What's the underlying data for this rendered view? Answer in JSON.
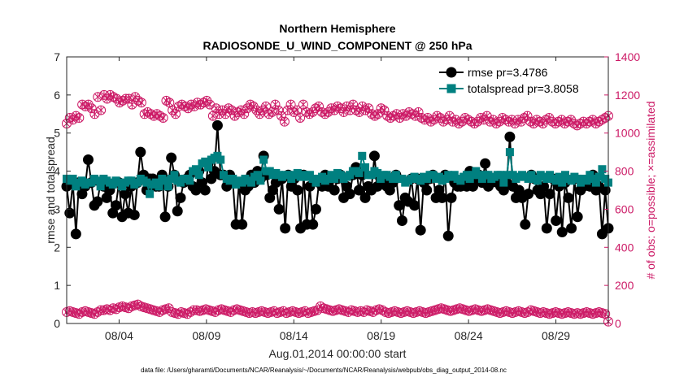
{
  "colors": {
    "rmse": "#000000",
    "spread": "#008080",
    "obs": "#cc1a66",
    "axis": "#262626"
  },
  "chart_data": {
    "type": "line",
    "title": "Northern Hemisphere",
    "subtitle": "RADIOSONDE_U_WIND_COMPONENT @ 250 hPa",
    "xlabel": "Aug.01,2014 00:00:00 start",
    "ylabel": "rmse and totalspread",
    "ylabel_right": "# of obs: o=possible; ×=assimilated",
    "footnote": "data file: /Users/gharamti/Documents/NCAR/Reanalysis/~/Documents/NCAR/Reanalysis/webpub/obs_diag_output_2014-08.nc",
    "x_range_days": [
      1,
      32
    ],
    "ylim": [
      0,
      7
    ],
    "yticks": [
      "0",
      "1",
      "2",
      "3",
      "4",
      "5",
      "6",
      "7"
    ],
    "ylim_right": [
      0,
      1400
    ],
    "yticks_right": [
      "0",
      "200",
      "400",
      "600",
      "800",
      "1000",
      "1200",
      "1400"
    ],
    "xticks": [
      {
        "day": 4,
        "label": "08/04"
      },
      {
        "day": 9,
        "label": "08/09"
      },
      {
        "day": 14,
        "label": "08/14"
      },
      {
        "day": 19,
        "label": "08/19"
      },
      {
        "day": 24,
        "label": "08/24"
      },
      {
        "day": 29,
        "label": "08/29"
      }
    ],
    "legend": [
      "rmse pr=3.4786",
      "totalspread pr=3.8058"
    ],
    "legend_position": "top-right",
    "series": [
      {
        "name": "rmse",
        "axis": "left",
        "values": [
          3.6,
          2.9,
          3.7,
          2.35,
          3.7,
          3.4,
          3.6,
          4.3,
          3.7,
          3.1,
          3.2,
          3.7,
          3.6,
          3.3,
          3.5,
          2.9,
          3.1,
          3.7,
          2.8,
          3.4,
          2.9,
          3.6,
          2.85,
          3.7,
          4.5,
          3.9,
          3.5,
          3.8,
          3.8,
          3.6,
          3.6,
          3.9,
          2.8,
          3.6,
          4.35,
          3.9,
          2.95,
          3.3,
          3.7,
          3.8,
          3.9,
          3.6,
          3.5,
          4.0,
          3.7,
          3.5,
          4.2,
          3.8,
          4.0,
          5.2,
          3.9,
          3.9,
          3.6,
          3.9,
          3.7,
          2.6,
          3.7,
          2.6,
          3.5,
          3.6,
          3.9,
          3.7,
          4.0,
          3.8,
          4.4,
          3.9,
          3.3,
          3.5,
          3.7,
          3.0,
          3.8,
          2.5,
          3.9,
          3.6,
          3.8,
          3.5,
          2.5,
          3.9,
          2.6,
          3.6,
          2.6,
          3.0,
          3.7,
          3.6,
          3.9,
          3.6,
          3.8,
          3.5,
          3.8,
          3.9,
          3.3,
          3.6,
          3.4,
          3.9,
          4.1,
          3.5,
          3.9,
          3.3,
          3.6,
          3.5,
          4.4,
          3.6,
          3.8,
          3.8,
          3.6,
          3.5,
          3.7,
          3.9,
          3.1,
          2.7,
          3.3,
          3.2,
          3.8,
          3.1,
          3.8,
          2.45,
          3.7,
          3.5,
          3.8,
          3.9,
          3.3,
          3.5,
          3.3,
          3.9,
          2.3,
          3.3,
          3.7,
          3.6,
          3.6,
          3.7,
          3.6,
          4.0,
          3.6,
          3.8,
          3.9,
          3.7,
          4.2,
          3.6,
          3.7,
          3.8,
          3.7,
          3.6,
          3.5,
          3.7,
          4.9,
          3.6,
          3.3,
          3.5,
          3.3,
          2.6,
          3.4,
          3.9,
          3.8,
          3.5,
          3.4,
          3.6,
          2.5,
          3.4,
          3.8,
          2.7,
          3.6,
          2.4,
          3.7,
          3.3,
          2.5,
          3.8,
          2.8,
          3.5,
          3.6,
          3.7,
          3.6,
          3.9,
          3.5,
          3.6,
          2.35,
          3.5,
          2.5
        ]
      },
      {
        "name": "totalspread",
        "axis": "left",
        "values": [
          3.8,
          3.75,
          3.8,
          3.6,
          3.7,
          3.75,
          3.65,
          3.7,
          3.7,
          3.8,
          3.75,
          3.6,
          3.8,
          3.75,
          3.7,
          3.65,
          3.75,
          3.7,
          3.6,
          3.7,
          3.75,
          3.75,
          3.65,
          3.7,
          3.8,
          3.75,
          3.7,
          3.4,
          3.65,
          3.7,
          3.6,
          3.8,
          3.75,
          3.6,
          3.8,
          3.9,
          3.75,
          3.7,
          3.8,
          3.8,
          3.75,
          4.0,
          4.05,
          3.9,
          4.2,
          4.25,
          4.1,
          4.3,
          4.35,
          4.4,
          4.3,
          3.9,
          3.8,
          3.75,
          3.8,
          3.65,
          3.75,
          3.7,
          3.8,
          3.75,
          3.7,
          3.85,
          3.9,
          3.75,
          4.3,
          4.0,
          4.0,
          3.9,
          3.95,
          3.9,
          3.85,
          3.9,
          3.9,
          3.8,
          3.9,
          3.95,
          3.85,
          3.9,
          3.85,
          3.9,
          3.8,
          3.7,
          3.8,
          3.85,
          3.75,
          3.8,
          3.9,
          3.8,
          3.95,
          3.9,
          3.8,
          3.85,
          3.9,
          4.0,
          4.0,
          3.95,
          4.4,
          4.1,
          3.9,
          3.9,
          4.0,
          3.95,
          3.8,
          3.9,
          3.9,
          3.85,
          3.8,
          3.9,
          3.8,
          3.8,
          3.7,
          3.75,
          3.8,
          3.85,
          3.8,
          3.75,
          3.85,
          3.8,
          3.9,
          3.9,
          3.8,
          3.85,
          3.75,
          3.8,
          3.9,
          3.85,
          3.9,
          3.8,
          3.75,
          3.85,
          3.9,
          3.8,
          3.9,
          4.0,
          3.9,
          3.8,
          3.9,
          3.9,
          3.8,
          3.85,
          3.9,
          3.9,
          3.7,
          3.9,
          4.5,
          3.9,
          3.8,
          3.85,
          3.9,
          3.85,
          3.8,
          3.9,
          3.8,
          3.75,
          3.9,
          3.85,
          3.8,
          3.9,
          3.8,
          3.75,
          3.85,
          3.7,
          3.9,
          3.8,
          3.75,
          3.85,
          3.8,
          3.7,
          3.8,
          3.75,
          3.9,
          3.8,
          3.7,
          3.85,
          4.05,
          3.8,
          3.7
        ]
      },
      {
        "name": "obs possible",
        "axis": "right",
        "values": [
          1050,
          1080,
          1070,
          1090,
          1080,
          1150,
          1140,
          1150,
          1130,
          1100,
          1190,
          1120,
          1200,
          1180,
          1200,
          1190,
          1180,
          1160,
          1170,
          1180,
          1180,
          1150,
          1190,
          1170,
          1160,
          1100,
          1110,
          1100,
          1090,
          1100,
          1090,
          1080,
          1170,
          1160,
          1120,
          1100,
          1140,
          1150,
          1140,
          1130,
          1150,
          1140,
          1160,
          1150,
          1160,
          1170,
          1150,
          1090,
          1130,
          1100,
          1120,
          1100,
          1130,
          1120,
          1090,
          1110,
          1120,
          1100,
          1130,
          1150,
          1140,
          1120,
          1100,
          1120,
          1140,
          1100,
          1110,
          1150,
          1120,
          1090,
          1060,
          1120,
          1150,
          1110,
          1120,
          1080,
          1150,
          1110,
          1100,
          1110,
          1130,
          1140,
          1110,
          1100,
          1110,
          1130,
          1120,
          1140,
          1130,
          1110,
          1140,
          1120,
          1150,
          1120,
          1110,
          1140,
          1120,
          1130,
          1100,
          1090,
          1100,
          1130,
          1120,
          1090,
          1080,
          1090,
          1100,
          1080,
          1100,
          1090,
          1110,
          1100,
          1090,
          1110,
          1080,
          1070,
          1080,
          1060,
          1070,
          1090,
          1080,
          1060,
          1070,
          1090,
          1060,
          1070,
          1050,
          1060,
          1080,
          1070,
          1060,
          1050,
          1060,
          1080,
          1070,
          1090,
          1060,
          1070,
          1050,
          1060,
          1080,
          1070,
          1060,
          1070,
          1050,
          1070,
          1060,
          1080,
          1090,
          1060,
          1050,
          1070,
          1060,
          1050,
          1070,
          1080,
          1060,
          1050,
          1060,
          1070,
          1050,
          1060,
          1070,
          1050,
          1040,
          1050,
          1060,
          1050,
          1060,
          1070,
          1050,
          1060,
          1070,
          1080,
          1090
        ]
      },
      {
        "name": "obs assimilated",
        "axis": "right",
        "values": [
          60,
          65,
          60,
          55,
          50,
          60,
          65,
          60,
          55,
          50,
          60,
          70,
          70,
          75,
          70,
          80,
          75,
          85,
          90,
          85,
          80,
          90,
          95,
          100,
          90,
          85,
          80,
          75,
          70,
          65,
          60,
          70,
          75,
          80,
          60,
          55,
          50,
          60,
          55,
          50,
          60,
          70,
          70,
          65,
          70,
          75,
          70,
          65,
          60,
          70,
          75,
          70,
          65,
          60,
          70,
          75,
          70,
          65,
          60,
          55,
          60,
          55,
          60,
          65,
          60,
          55,
          60,
          65,
          55,
          60,
          65,
          55,
          60,
          65,
          60,
          55,
          60,
          65,
          55,
          60,
          65,
          70,
          90,
          80,
          75,
          70,
          65,
          70,
          75,
          70,
          65,
          60,
          70,
          65,
          60,
          65,
          60,
          70,
          65,
          60,
          70,
          75,
          70,
          60,
          55,
          60,
          65,
          60,
          55,
          60,
          65,
          60,
          55,
          60,
          65,
          60,
          55,
          60,
          65,
          70,
          75,
          80,
          75,
          70,
          65,
          70,
          75,
          80,
          75,
          70,
          65,
          70,
          75,
          70,
          65,
          70,
          75,
          70,
          65,
          60,
          55,
          60,
          65,
          60,
          55,
          60,
          65,
          60,
          55,
          60,
          70,
          65,
          60,
          55,
          60,
          55,
          50,
          55,
          60,
          55,
          50,
          55,
          60,
          55,
          50,
          55,
          50,
          55,
          60,
          55,
          50,
          55,
          60,
          55,
          50,
          10
        ]
      }
    ]
  }
}
